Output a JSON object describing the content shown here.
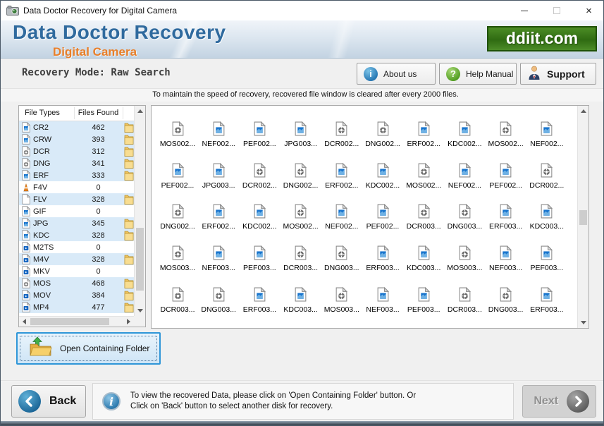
{
  "window": {
    "title": "Data Doctor Recovery for Digital Camera",
    "close_glyph": "×"
  },
  "header": {
    "title": "Data Doctor Recovery",
    "subtitle": "Digital Camera",
    "logo_text": "ddiit.com"
  },
  "modebar": {
    "label": "Recovery Mode: Raw Search",
    "buttons": [
      {
        "label": "About us",
        "icon": "info-orb-icon"
      },
      {
        "label": "Help Manual",
        "icon": "question-orb-icon"
      },
      {
        "label": "Support",
        "icon": "support-person-icon"
      }
    ]
  },
  "icons": {
    "about_glyph": "i",
    "help_glyph": "?",
    "info_glyph": "i"
  },
  "notice": {
    "text": "To maintain the speed of recovery, recovered file window is cleared after every 2000 files."
  },
  "file_table": {
    "columns": [
      "File Types",
      "Files Found"
    ],
    "rows": [
      {
        "type": "CR2",
        "count": 462,
        "icon": "image"
      },
      {
        "type": "CRW",
        "count": 393,
        "icon": "image"
      },
      {
        "type": "DCR",
        "count": 312,
        "icon": "gear"
      },
      {
        "type": "DNG",
        "count": 341,
        "icon": "gear"
      },
      {
        "type": "ERF",
        "count": 333,
        "icon": "image"
      },
      {
        "type": "F4V",
        "count": 0,
        "icon": "cone"
      },
      {
        "type": "FLV",
        "count": 328,
        "icon": "plain"
      },
      {
        "type": "GIF",
        "count": 0,
        "icon": "image"
      },
      {
        "type": "JPG",
        "count": 345,
        "icon": "image"
      },
      {
        "type": "KDC",
        "count": 328,
        "icon": "image"
      },
      {
        "type": "M2TS",
        "count": 0,
        "icon": "video"
      },
      {
        "type": "M4V",
        "count": 328,
        "icon": "video"
      },
      {
        "type": "MKV",
        "count": 0,
        "icon": "video"
      },
      {
        "type": "MOS",
        "count": 468,
        "icon": "gear"
      },
      {
        "type": "MOV",
        "count": 384,
        "icon": "video"
      },
      {
        "type": "MP4",
        "count": 477,
        "icon": "video"
      }
    ]
  },
  "folder_button": {
    "label": "Open Containing Folder"
  },
  "file_grid": {
    "items": [
      {
        "label": "MOS002...",
        "icon": "gear"
      },
      {
        "label": "NEF002...",
        "icon": "image"
      },
      {
        "label": "PEF002...",
        "icon": "image"
      },
      {
        "label": "JPG003...",
        "icon": "image"
      },
      {
        "label": "DCR002...",
        "icon": "gear"
      },
      {
        "label": "DNG002...",
        "icon": "gear"
      },
      {
        "label": "ERF002...",
        "icon": "image"
      },
      {
        "label": "KDC002...",
        "icon": "image"
      },
      {
        "label": "MOS002...",
        "icon": "gear"
      },
      {
        "label": "NEF002...",
        "icon": "image"
      },
      {
        "label": "PEF002...",
        "icon": "image"
      },
      {
        "label": "JPG003...",
        "icon": "image"
      },
      {
        "label": "DCR002...",
        "icon": "gear"
      },
      {
        "label": "DNG002...",
        "icon": "gear"
      },
      {
        "label": "ERF002...",
        "icon": "image"
      },
      {
        "label": "KDC002...",
        "icon": "image"
      },
      {
        "label": "MOS002...",
        "icon": "gear"
      },
      {
        "label": "NEF002...",
        "icon": "image"
      },
      {
        "label": "PEF002...",
        "icon": "image"
      },
      {
        "label": "DCR002...",
        "icon": "gear"
      },
      {
        "label": "DNG002...",
        "icon": "gear"
      },
      {
        "label": "ERF002...",
        "icon": "image"
      },
      {
        "label": "KDC002...",
        "icon": "image"
      },
      {
        "label": "MOS002...",
        "icon": "gear"
      },
      {
        "label": "NEF002...",
        "icon": "image"
      },
      {
        "label": "PEF002...",
        "icon": "image"
      },
      {
        "label": "DCR003...",
        "icon": "gear"
      },
      {
        "label": "DNG003...",
        "icon": "gear"
      },
      {
        "label": "ERF003...",
        "icon": "image"
      },
      {
        "label": "KDC003...",
        "icon": "image"
      },
      {
        "label": "MOS003...",
        "icon": "gear"
      },
      {
        "label": "NEF003...",
        "icon": "image"
      },
      {
        "label": "PEF003...",
        "icon": "image"
      },
      {
        "label": "DCR003...",
        "icon": "gear"
      },
      {
        "label": "DNG003...",
        "icon": "gear"
      },
      {
        "label": "ERF003...",
        "icon": "image"
      },
      {
        "label": "KDC003...",
        "icon": "image"
      },
      {
        "label": "MOS003...",
        "icon": "gear"
      },
      {
        "label": "NEF003...",
        "icon": "image"
      },
      {
        "label": "PEF003...",
        "icon": "image"
      },
      {
        "label": "DCR003...",
        "icon": "gear"
      },
      {
        "label": "DNG003...",
        "icon": "gear"
      },
      {
        "label": "ERF003...",
        "icon": "image"
      },
      {
        "label": "KDC003...",
        "icon": "image"
      },
      {
        "label": "MOS003...",
        "icon": "gear"
      },
      {
        "label": "NEF003...",
        "icon": "image"
      },
      {
        "label": "PEF003...",
        "icon": "image"
      },
      {
        "label": "DCR003...",
        "icon": "gear"
      },
      {
        "label": "DNG003...",
        "icon": "gear"
      },
      {
        "label": "ERF003...",
        "icon": "image"
      }
    ]
  },
  "footer": {
    "back_label": "Back",
    "next_label": "Next",
    "info_line1": "To view the recovered Data, please click on 'Open Containing Folder' button. Or",
    "info_line2": "Click on 'Back' button to select another disk for recovery."
  },
  "colors": {
    "accent_blue": "#2f96d8",
    "row_highlight": "#d9eaf8",
    "logo_green": "#2f6b12",
    "subtitle_orange": "#e87f2a",
    "title_blue": "#2f6a9e"
  }
}
